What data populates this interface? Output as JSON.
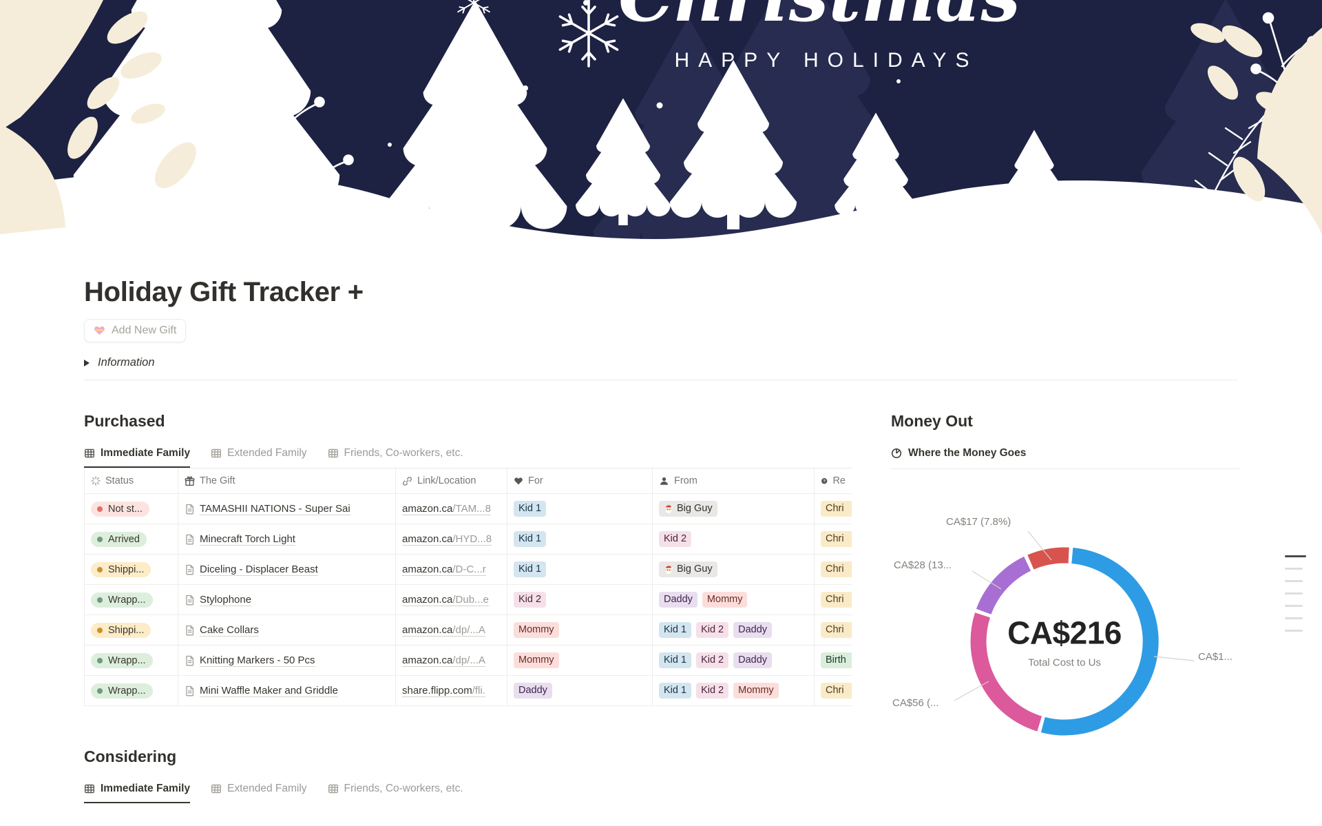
{
  "cover": {
    "script_title": "Christmas",
    "subtitle": "HAPPY HOLIDAYS"
  },
  "page": {
    "title": "Holiday Gift Tracker +",
    "add_button_label": "Add New Gift",
    "toggle_label": "Information"
  },
  "view_tabs": [
    {
      "label": "Immediate Family"
    },
    {
      "label": "Extended Family"
    },
    {
      "label": "Friends, Co-workers, etc."
    }
  ],
  "purchased": {
    "heading": "Purchased",
    "columns": [
      {
        "icon": "status-spinner-icon",
        "label": "Status"
      },
      {
        "icon": "gift-icon",
        "label": "The Gift"
      },
      {
        "icon": "link-icon",
        "label": "Link/Location"
      },
      {
        "icon": "heart-icon",
        "label": "For"
      },
      {
        "icon": "person-icon",
        "label": "From"
      },
      {
        "icon": "question-bubble-icon",
        "label": "Re"
      }
    ],
    "rows": [
      {
        "status": {
          "t": "Not st...",
          "c": "red"
        },
        "gift": "TAMASHII NATIONS - Super Sai",
        "link": {
          "base": "amazon.ca",
          "rest": "/TAM...8"
        },
        "for": [
          {
            "t": "Kid 1",
            "c": "blue"
          }
        ],
        "from": [
          {
            "t": "Big Guy",
            "c": "gray",
            "santa": true
          }
        ],
        "reason": [
          {
            "t": "Chri",
            "c": "yellow"
          }
        ]
      },
      {
        "status": {
          "t": "Arrived",
          "c": "green"
        },
        "gift": "Minecraft Torch Light",
        "link": {
          "base": "amazon.ca",
          "rest": "/HYD...8"
        },
        "for": [
          {
            "t": "Kid 1",
            "c": "blue"
          }
        ],
        "from": [
          {
            "t": "Kid 2",
            "c": "pink"
          }
        ],
        "reason": [
          {
            "t": "Chri",
            "c": "yellow"
          }
        ]
      },
      {
        "status": {
          "t": "Shippi...",
          "c": "yellow"
        },
        "gift": "Diceling - Displacer Beast",
        "link": {
          "base": "amazon.ca",
          "rest": "/D-C...r"
        },
        "for": [
          {
            "t": "Kid 1",
            "c": "blue"
          }
        ],
        "from": [
          {
            "t": "Big Guy",
            "c": "gray",
            "santa": true
          }
        ],
        "reason": [
          {
            "t": "Chri",
            "c": "yellow"
          }
        ]
      },
      {
        "status": {
          "t": "Wrapp...",
          "c": "green"
        },
        "gift": "Stylophone",
        "link": {
          "base": "amazon.ca",
          "rest": "/Dub...e"
        },
        "for": [
          {
            "t": "Kid 2",
            "c": "pink"
          }
        ],
        "from": [
          {
            "t": "Daddy",
            "c": "purple"
          },
          {
            "t": "Mommy",
            "c": "red"
          }
        ],
        "reason": [
          {
            "t": "Chri",
            "c": "yellow"
          }
        ]
      },
      {
        "status": {
          "t": "Shippi...",
          "c": "yellow"
        },
        "gift": "Cake Collars",
        "link": {
          "base": "amazon.ca",
          "rest": "/dp/...A"
        },
        "for": [
          {
            "t": "Mommy",
            "c": "red"
          }
        ],
        "from": [
          {
            "t": "Kid 1",
            "c": "blue"
          },
          {
            "t": "Kid 2",
            "c": "pink"
          },
          {
            "t": "Daddy",
            "c": "purple"
          }
        ],
        "reason": [
          {
            "t": "Chri",
            "c": "yellow"
          }
        ]
      },
      {
        "status": {
          "t": "Wrapp...",
          "c": "green"
        },
        "gift": "Knitting Markers - 50 Pcs",
        "link": {
          "base": "amazon.ca",
          "rest": "/dp/...A"
        },
        "for": [
          {
            "t": "Mommy",
            "c": "red"
          }
        ],
        "from": [
          {
            "t": "Kid 1",
            "c": "blue"
          },
          {
            "t": "Kid 2",
            "c": "pink"
          },
          {
            "t": "Daddy",
            "c": "purple"
          }
        ],
        "reason": [
          {
            "t": "Birth",
            "c": "green"
          }
        ]
      },
      {
        "status": {
          "t": "Wrapp...",
          "c": "green"
        },
        "gift": "Mini Waffle Maker and Griddle",
        "link": {
          "base": "share.flipp.com",
          "rest": "/fli."
        },
        "for": [
          {
            "t": "Daddy",
            "c": "purple"
          }
        ],
        "from": [
          {
            "t": "Kid 1",
            "c": "blue"
          },
          {
            "t": "Kid 2",
            "c": "pink"
          },
          {
            "t": "Mommy",
            "c": "red"
          }
        ],
        "reason": [
          {
            "t": "Chri",
            "c": "yellow"
          }
        ]
      }
    ]
  },
  "considering": {
    "heading": "Considering"
  },
  "money_out": {
    "heading": "Money Out"
  },
  "chart_data": {
    "type": "pie",
    "subtype": "donut",
    "title": "Where the Money Goes",
    "center_label": "CA$216",
    "center_sublabel": "Total Cost to Us",
    "total": 216,
    "currency": "CA$",
    "start_angle_deg": 4,
    "gap_deg": 2.4,
    "legend_position": "callouts",
    "segments": [
      {
        "label": "CA$1...",
        "value": 115,
        "pct_shown": "",
        "color": "#2E9CE4"
      },
      {
        "label": "CA$56 (...",
        "value": 56,
        "pct_shown": "",
        "color": "#DC599C"
      },
      {
        "label": "CA$28 (13...",
        "value": 28,
        "pct_shown": "13",
        "color": "#A76FD3"
      },
      {
        "label": "CA$17 (7.8%)",
        "value": 17,
        "pct_shown": "7.8%",
        "color": "#D9534E"
      }
    ]
  },
  "palette": {
    "cover_navy": "#1D2142",
    "cover_tree_dark": "#272C50",
    "cover_cream": "#F5EDD9",
    "text_dark": "#37352F",
    "text_gray": "#787774",
    "text_light": "#9B9A97",
    "tag_blue_bg": "#D3E5EF",
    "tag_pink_bg": "#F5E0E9",
    "tag_purple_bg": "#E8DEEE",
    "tag_red_bg": "#FBDEDB",
    "tag_yellow_bg": "#FAEBC8",
    "tag_green_bg": "#DBEDDB",
    "tag_gray_bg": "#E9E8E6",
    "status_dot_red": "#E16F64",
    "status_dot_green": "#6C9B7D",
    "status_dot_yellow": "#CB912F"
  }
}
